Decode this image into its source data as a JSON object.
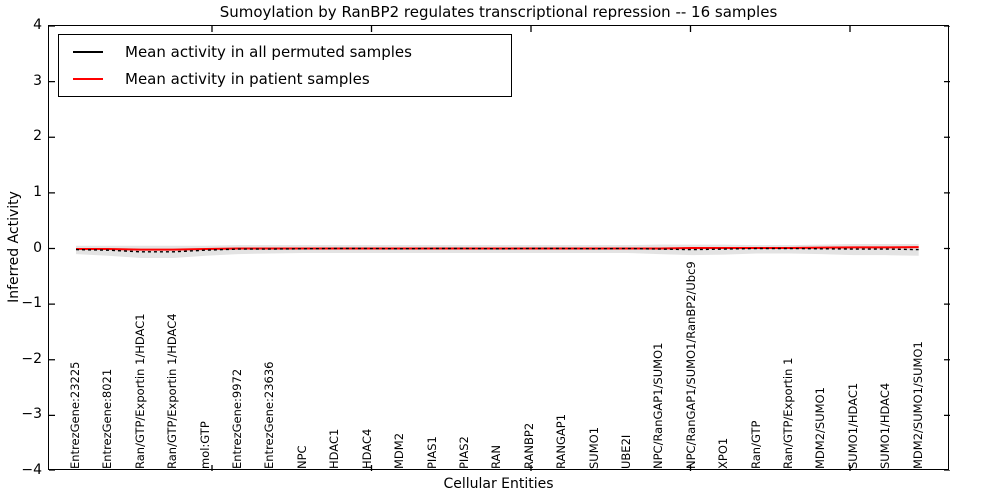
{
  "title": "Sumoylation by RanBP2 regulates transcriptional repression -- 16 samples",
  "axes": {
    "xlabel": "Cellular Entities",
    "ylabel": "Inferred Activity",
    "ytick_labels": [
      "4",
      "3",
      "2",
      "1",
      "0",
      "−1",
      "−2",
      "−3",
      "−4"
    ]
  },
  "legend": {
    "items": [
      {
        "label": "Mean activity in all permuted samples",
        "color": "#000000"
      },
      {
        "label": "Mean activity in patient samples",
        "color": "#ff0000"
      }
    ]
  },
  "chart_data": {
    "type": "line",
    "title": "Sumoylation by RanBP2 regulates transcriptional repression -- 16 samples",
    "xlabel": "Cellular Entities",
    "ylabel": "Inferred Activity",
    "ylim": [
      -4,
      4
    ],
    "yticks": [
      -4,
      -3,
      -2,
      -1,
      0,
      1,
      2,
      3,
      4
    ],
    "grid": false,
    "legend_position": "upper left",
    "categories": [
      "EntrezGene:23225",
      "EntrezGene:8021",
      "Ran/GTP/Exportin 1/HDAC1",
      "Ran/GTP/Exportin 1/HDAC4",
      "mol:GTP",
      "EntrezGene:9972",
      "EntrezGene:23636",
      "NPC",
      "HDAC1",
      "HDAC4",
      "MDM2",
      "PIAS1",
      "PIAS2",
      "RAN",
      "RANBP2",
      "RANGAP1",
      "SUMO1",
      "UBE2I",
      "NPC/RanGAP1/SUMO1",
      "NPC/RanGAP1/SUMO1/RanBP2/Ubc9",
      "XPO1",
      "Ran/GTP",
      "Ran/GTP/Exportin 1",
      "MDM2/SUMO1",
      "SUMO1/HDAC1",
      "SUMO1/HDAC4",
      "MDM2/SUMO1/SUMO1"
    ],
    "series": [
      {
        "name": "Mean activity in all permuted samples",
        "color": "#000000",
        "line_style": "dashed",
        "values": [
          -0.02,
          -0.03,
          -0.06,
          -0.06,
          -0.03,
          -0.01,
          -0.01,
          -0.005,
          0,
          0,
          -0.005,
          0,
          0,
          -0.005,
          0,
          0,
          -0.005,
          0,
          -0.01,
          -0.02,
          -0.01,
          0,
          0,
          -0.005,
          -0.01,
          -0.01,
          -0.02
        ]
      },
      {
        "name": "Mean activity in patient samples",
        "color": "#ff0000",
        "line_style": "solid",
        "values": [
          -0.01,
          -0.01,
          -0.02,
          -0.02,
          -0.01,
          0,
          0,
          0,
          0,
          0,
          0,
          0,
          0,
          0,
          0,
          0,
          0,
          0,
          0,
          0.01,
          0.01,
          0.01,
          0.01,
          0.015,
          0.02,
          0.02,
          0.025
        ]
      }
    ],
    "band": {
      "name": "permuted samples range",
      "color": "#d9d9d9",
      "upper": [
        0.05,
        0.05,
        0.05,
        0.05,
        0.05,
        0.06,
        0.06,
        0.06,
        0.06,
        0.06,
        0.06,
        0.06,
        0.06,
        0.06,
        0.06,
        0.06,
        0.06,
        0.06,
        0.07,
        0.07,
        0.07,
        0.06,
        0.06,
        0.07,
        0.08,
        0.08,
        0.08
      ],
      "lower": [
        -0.1,
        -0.13,
        -0.17,
        -0.17,
        -0.13,
        -0.1,
        -0.09,
        -0.08,
        -0.08,
        -0.08,
        -0.08,
        -0.08,
        -0.08,
        -0.08,
        -0.08,
        -0.08,
        -0.08,
        -0.08,
        -0.1,
        -0.12,
        -0.11,
        -0.09,
        -0.09,
        -0.1,
        -0.12,
        -0.12,
        -0.13
      ]
    }
  }
}
